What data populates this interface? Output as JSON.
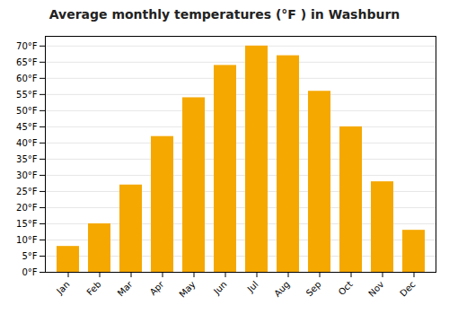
{
  "chart_data": {
    "type": "bar",
    "title": "Average monthly temperatures (°F ) in Washburn",
    "categories": [
      "Jan",
      "Feb",
      "Mar",
      "Apr",
      "May",
      "Jun",
      "Jul",
      "Aug",
      "Sep",
      "Oct",
      "Nov",
      "Dec"
    ],
    "values": [
      8,
      15,
      27,
      42,
      54,
      64,
      70,
      67,
      56,
      45,
      28,
      13
    ],
    "color": "#F5A800",
    "ylim": [
      0,
      73
    ],
    "yticks": [
      {
        "value": 0,
        "label": "0°F"
      },
      {
        "value": 5,
        "label": "5°F"
      },
      {
        "value": 10,
        "label": "10°F"
      },
      {
        "value": 15,
        "label": "15°F"
      },
      {
        "value": 20,
        "label": "20°F"
      },
      {
        "value": 25,
        "label": "25°F"
      },
      {
        "value": 30,
        "label": "30°F"
      },
      {
        "value": 35,
        "label": "35°F"
      },
      {
        "value": 40,
        "label": "40°F"
      },
      {
        "value": 45,
        "label": "45°F"
      },
      {
        "value": 50,
        "label": "50°F"
      },
      {
        "value": 55,
        "label": "55°F"
      },
      {
        "value": 60,
        "label": "60°F"
      },
      {
        "value": 65,
        "label": "65°F"
      },
      {
        "value": 70,
        "label": "70°F"
      }
    ],
    "grid": true
  }
}
